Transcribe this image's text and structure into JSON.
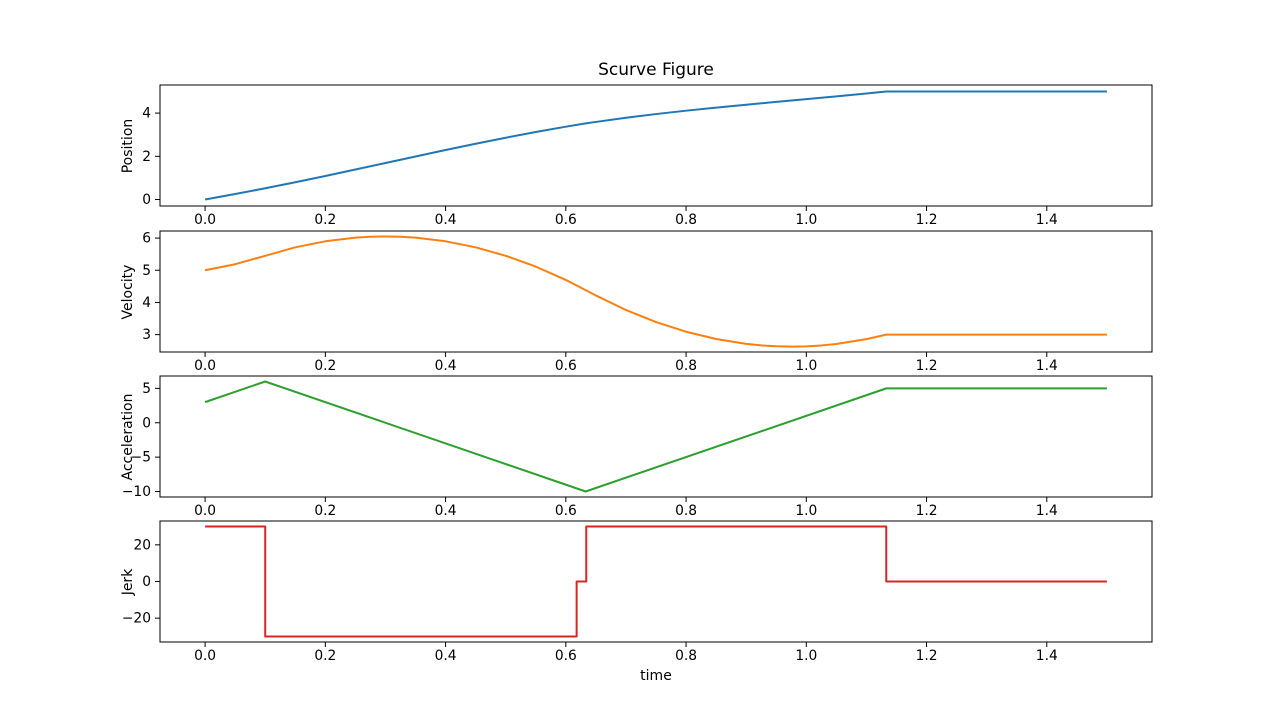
{
  "figure": {
    "title": "Scurve Figure",
    "xlabel": "time",
    "background": "#ffffff",
    "frame_color": "#000000",
    "xlim": [
      -0.075,
      1.575
    ],
    "xticks": {
      "values": [
        0.0,
        0.2,
        0.4,
        0.6,
        0.8,
        1.0,
        1.2,
        1.4
      ],
      "labels": [
        "0.0",
        "0.2",
        "0.4",
        "0.6",
        "0.8",
        "1.0",
        "1.2",
        "1.4"
      ]
    }
  },
  "chart_data": [
    {
      "type": "line",
      "name": "position",
      "ylabel": "Position",
      "color": "#1f77b4",
      "ylim": [
        -0.3,
        5.3
      ],
      "yticks": {
        "values": [
          0,
          2,
          4
        ],
        "labels": [
          "0",
          "2",
          "4"
        ]
      },
      "x": [
        0,
        0.05,
        0.1,
        0.15,
        0.2,
        0.25,
        0.3,
        0.35,
        0.4,
        0.45,
        0.5,
        0.55,
        0.6,
        0.633,
        0.65,
        0.7,
        0.75,
        0.8,
        0.85,
        0.9,
        0.95,
        1.0,
        1.05,
        1.1,
        1.133,
        1.5
      ],
      "y": [
        0,
        0.254,
        0.52,
        0.799,
        1.09,
        1.388,
        1.69,
        1.992,
        2.29,
        2.581,
        2.86,
        3.124,
        3.37,
        3.522,
        3.591,
        3.783,
        3.955,
        4.111,
        4.254,
        4.388,
        4.517,
        4.644,
        4.772,
        4.906,
        5.0,
        5.0
      ]
    },
    {
      "type": "line",
      "name": "velocity",
      "ylabel": "Velocity",
      "color": "#ff7f0e",
      "ylim": [
        2.46,
        6.22
      ],
      "yticks": {
        "values": [
          3,
          4,
          5,
          6
        ],
        "labels": [
          "3",
          "4",
          "5",
          "6"
        ]
      },
      "x": [
        0,
        0.05,
        0.1,
        0.15,
        0.2,
        0.25,
        0.275,
        0.3,
        0.325,
        0.35,
        0.4,
        0.45,
        0.5,
        0.55,
        0.6,
        0.633,
        0.65,
        0.7,
        0.75,
        0.8,
        0.85,
        0.9,
        0.925,
        0.95,
        0.976,
        1.0,
        1.025,
        1.05,
        1.1,
        1.133,
        1.5
      ],
      "y": [
        5.0,
        5.188,
        5.45,
        5.713,
        5.9,
        6.013,
        6.041,
        6.05,
        6.041,
        6.013,
        5.9,
        5.713,
        5.45,
        5.113,
        4.7,
        4.383,
        4.217,
        3.766,
        3.39,
        3.09,
        2.864,
        2.713,
        2.665,
        2.637,
        2.627,
        2.636,
        2.664,
        2.71,
        2.859,
        3.0,
        3.0
      ]
    },
    {
      "type": "line",
      "name": "acceleration",
      "ylabel": "Acceleration",
      "color": "#2ca02c",
      "ylim": [
        -10.8,
        6.8
      ],
      "yticks": {
        "values": [
          -10,
          -5,
          0,
          5
        ],
        "labels": [
          "−10",
          "−5",
          "0",
          "5"
        ]
      },
      "x": [
        0,
        0.1,
        0.633,
        1.133,
        1.5
      ],
      "y": [
        3,
        6,
        -10,
        5,
        5
      ]
    },
    {
      "type": "line",
      "name": "jerk",
      "ylabel": "Jerk",
      "color": "#d62728",
      "ylim": [
        -33,
        33
      ],
      "yticks": {
        "values": [
          -20,
          0,
          20
        ],
        "labels": [
          "−20",
          "0",
          "20"
        ]
      },
      "x": [
        0,
        0.1,
        0.1,
        0.618,
        0.618,
        0.634,
        0.634,
        1.133,
        1.133,
        1.5
      ],
      "y": [
        30,
        30,
        -30,
        -30,
        0,
        0,
        30,
        30,
        0,
        0
      ]
    }
  ]
}
